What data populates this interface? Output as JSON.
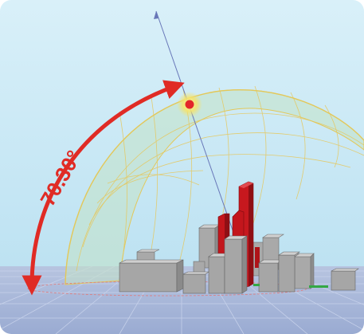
{
  "sun_angle": {
    "altitude_label": "70.30°",
    "altitude_degrees": 70.3,
    "arrow_color": "#e02b25"
  },
  "colors": {
    "sky_top": "#d6eef8",
    "sky_bottom": "#bfe3f3",
    "ground": "#a9b8d8",
    "grid_line": "#c9d3ea",
    "dome_fill": "#bfe1c8",
    "dome_line": "#e6c75a",
    "sun_core": "#e3262a",
    "sun_glow": "#f7e46a",
    "ray_line": "#6877b8",
    "building_gray": "#a6a6a6",
    "building_red": "#c3161c"
  },
  "icons": {
    "sun": "sun-position-icon"
  }
}
